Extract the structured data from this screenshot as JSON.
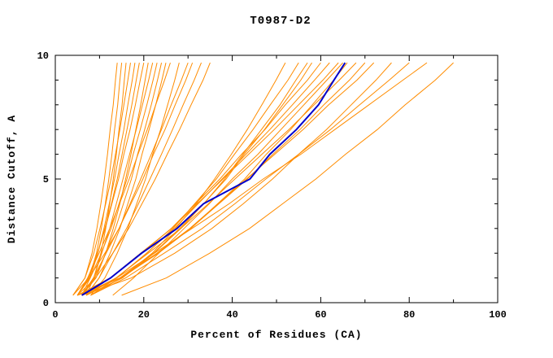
{
  "chart_data": {
    "type": "line",
    "title": "T0987-D2",
    "xlabel": "Percent of Residues (CA)",
    "ylabel": "Distance Cutoff, A",
    "xlim": [
      0,
      100
    ],
    "ylim": [
      0,
      10
    ],
    "x_ticks": [
      0,
      20,
      40,
      60,
      80,
      100
    ],
    "x_minor_ticks": [
      10,
      30,
      50,
      70,
      90
    ],
    "y_ticks": [
      0,
      5,
      10
    ],
    "y_minor_ticks": [
      1,
      2,
      3,
      4,
      6,
      7,
      8,
      9
    ],
    "grid": false,
    "legend": "none",
    "colors": {
      "model_lines": "#ff8c00",
      "highlight_line": "#0000cd",
      "axis": "#000000",
      "background": "#ffffff"
    },
    "y_levels": [
      0.3,
      1,
      2,
      3,
      4,
      5,
      6,
      7,
      8,
      9,
      9.7
    ],
    "highlight_series": {
      "name": "selected-model",
      "x": [
        6,
        12.5,
        19.5,
        27.5,
        33.5,
        44,
        48.5,
        54.5,
        59.5,
        63,
        65.5
      ]
    },
    "series": [
      {
        "name": "model",
        "x": [
          5,
          7.7,
          9.3,
          10.4,
          11.3,
          12.1,
          12.8,
          13.4,
          14.1,
          14.6,
          15
        ]
      },
      {
        "name": "model",
        "x": [
          6,
          7.9,
          9.6,
          11.0,
          12.2,
          13.4,
          14.4,
          15.5,
          16.4,
          17.4,
          18
        ]
      },
      {
        "name": "model",
        "x": [
          5,
          7.4,
          9.5,
          11.3,
          12.8,
          14.3,
          15.5,
          16.9,
          18.1,
          19.2,
          20
        ]
      },
      {
        "name": "model",
        "x": [
          7,
          8.7,
          10.5,
          12.3,
          13.8,
          15.3,
          16.8,
          18.3,
          19.7,
          21.1,
          22
        ]
      },
      {
        "name": "model",
        "x": [
          4,
          6.7,
          8.7,
          10.1,
          11.4,
          12.6,
          13.6,
          14.6,
          15.5,
          16.4,
          17
        ]
      },
      {
        "name": "model",
        "x": [
          6,
          8.9,
          11.4,
          13.6,
          15.4,
          17.2,
          18.6,
          20.2,
          21.7,
          23.1,
          24
        ]
      },
      {
        "name": "model",
        "x": [
          5,
          7.3,
          9.9,
          12.3,
          14.5,
          16.7,
          18.7,
          20.8,
          22.7,
          24.7,
          26
        ]
      },
      {
        "name": "model",
        "x": [
          8,
          11.2,
          14,
          16.4,
          18.4,
          20.4,
          22,
          23.8,
          25.4,
          27,
          28
        ]
      },
      {
        "name": "model",
        "x": [
          6,
          8.6,
          11.5,
          14.4,
          16.9,
          19.3,
          21.7,
          24,
          26.2,
          28.5,
          30
        ]
      },
      {
        "name": "model",
        "x": [
          7,
          9.9,
          13,
          16.1,
          18.8,
          21.4,
          24,
          26.5,
          28.9,
          31.4,
          33
        ]
      },
      {
        "name": "model",
        "x": [
          5,
          9.1,
          13,
          16.6,
          19.6,
          22.6,
          25.3,
          28.1,
          30.7,
          33.4,
          35
        ]
      },
      {
        "name": "model",
        "x": [
          4,
          6.7,
          8.3,
          9.4,
          10.3,
          11.1,
          11.8,
          12.4,
          13.1,
          13.6,
          14
        ]
      },
      {
        "name": "model",
        "x": [
          6,
          9.2,
          11.4,
          13.1,
          14.6,
          15.9,
          17.1,
          18.2,
          19.3,
          20.3,
          21
        ]
      },
      {
        "name": "model",
        "x": [
          7,
          9.9,
          12.4,
          14.6,
          16.4,
          18.2,
          19.6,
          21.2,
          22.7,
          24.1,
          25
        ]
      },
      {
        "name": "model",
        "x": [
          5,
          7.6,
          9.6,
          11.2,
          12.7,
          14,
          15.1,
          16.2,
          17.3,
          18.3,
          19
        ]
      },
      {
        "name": "model",
        "x": [
          5,
          7.9,
          10.4,
          12.6,
          14.4,
          16.2,
          17.6,
          19.2,
          20.7,
          22.1,
          23
        ]
      },
      {
        "name": "model",
        "x": [
          6,
          8.7,
          10.3,
          11.4,
          12.3,
          13.1,
          13.8,
          14.4,
          15.1,
          15.6,
          16
        ]
      },
      {
        "name": "model",
        "x": [
          4,
          7.6,
          11.2,
          14.4,
          17.1,
          19.8,
          22.2,
          24.8,
          27.1,
          29.5,
          31
        ]
      },
      {
        "name": "model",
        "x": [
          5,
          14.9,
          21.9,
          27.2,
          31.9,
          36,
          39.8,
          43.4,
          46.7,
          49.9,
          52
        ]
      },
      {
        "name": "model",
        "x": [
          6,
          13.8,
          20.7,
          26.6,
          31.5,
          36.4,
          40.5,
          44.7,
          48.6,
          52.6,
          55
        ]
      },
      {
        "name": "model",
        "x": [
          7,
          15.2,
          22.3,
          28.4,
          33.5,
          38.6,
          42.7,
          47.3,
          51.4,
          55.5,
          58
        ]
      },
      {
        "name": "model",
        "x": [
          5,
          12.4,
          19.6,
          26.2,
          31.7,
          37.2,
          42.1,
          47.4,
          52,
          57,
          60
        ]
      },
      {
        "name": "model",
        "x": [
          8,
          13.9,
          20.6,
          26.9,
          32.3,
          37.7,
          43.1,
          48.5,
          53.6,
          58.6,
          62
        ]
      },
      {
        "name": "model",
        "x": [
          6,
          12.4,
          19.3,
          26.3,
          32.1,
          37.9,
          43.7,
          49.5,
          55,
          60.5,
          64
        ]
      },
      {
        "name": "model",
        "x": [
          5,
          14.8,
          23.3,
          30.6,
          36.7,
          42.8,
          47.7,
          53.2,
          58.1,
          62.9,
          66
        ]
      },
      {
        "name": "model",
        "x": [
          7,
          13.7,
          21,
          28.4,
          34.6,
          40.6,
          46.7,
          52.8,
          58.5,
          64.2,
          68
        ]
      },
      {
        "name": "model",
        "x": [
          6,
          14.6,
          23,
          30.6,
          37,
          43.4,
          49.2,
          55.3,
          60.7,
          66.5,
          70
        ]
      },
      {
        "name": "model",
        "x": [
          8,
          15,
          23,
          30.4,
          36.8,
          43.2,
          49.6,
          56,
          61.8,
          68.2,
          72
        ]
      },
      {
        "name": "model",
        "x": [
          5,
          14.6,
          22.2,
          28.1,
          33.6,
          38.3,
          42.4,
          46.6,
          50.8,
          54.4,
          57
        ]
      },
      {
        "name": "model",
        "x": [
          13,
          17.7,
          23.4,
          29.1,
          34.8,
          40,
          45.8,
          51,
          56.2,
          61.4,
          65
        ]
      },
      {
        "name": "model",
        "x": [
          6,
          17.2,
          27,
          35.4,
          42.5,
          49.1,
          55,
          61.3,
          66.9,
          72.5,
          76
        ]
      },
      {
        "name": "model",
        "x": [
          8,
          15.9,
          24.6,
          33.2,
          40.6,
          47.6,
          55,
          62.2,
          68.8,
          75.5,
          80
        ]
      },
      {
        "name": "model",
        "x": [
          15,
          25.1,
          34.9,
          43.9,
          51.4,
          58.9,
          65.6,
          72.8,
          79.1,
          85.9,
          90
        ]
      },
      {
        "name": "model",
        "x": [
          7,
          13.9,
          22.4,
          30.9,
          39.3,
          47,
          55.5,
          63.2,
          70.9,
          78.6,
          84
        ]
      }
    ]
  }
}
